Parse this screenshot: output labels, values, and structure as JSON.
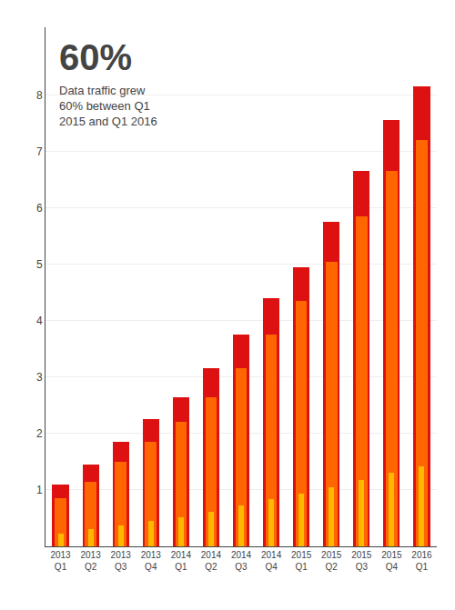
{
  "chart_data": {
    "type": "bar",
    "categories": [
      "2013\nQ1",
      "2013\nQ2",
      "2013\nQ3",
      "2013\nQ4",
      "2014\nQ1",
      "2014\nQ2",
      "2014\nQ3",
      "2014\nQ4",
      "2015\nQ1",
      "2015\nQ2",
      "2015\nQ3",
      "2015\nQ4",
      "2016\nQ1"
    ],
    "series": [
      {
        "color": "#DD1111",
        "values": [
          1.1,
          1.45,
          1.85,
          2.25,
          2.65,
          3.15,
          3.75,
          4.4,
          4.95,
          5.75,
          6.65,
          7.55,
          8.15
        ]
      },
      {
        "color": "#FF6600",
        "values": [
          0.85,
          1.15,
          1.5,
          1.85,
          2.2,
          2.65,
          3.15,
          3.75,
          4.35,
          5.05,
          5.85,
          6.65,
          7.2
        ]
      },
      {
        "color": "#FFB800",
        "values": [
          0.22,
          0.3,
          0.37,
          0.45,
          0.52,
          0.62,
          0.72,
          0.83,
          0.93,
          1.05,
          1.17,
          1.3,
          1.42
        ]
      }
    ],
    "ylim": [
      0,
      9.2
    ],
    "yticks": [
      1,
      2,
      3,
      4,
      5,
      6,
      7,
      8
    ],
    "grid": true,
    "annotations": [
      "60%",
      "Data traffic grew\n60% between Q1\n2015 and Q1 2016"
    ]
  }
}
